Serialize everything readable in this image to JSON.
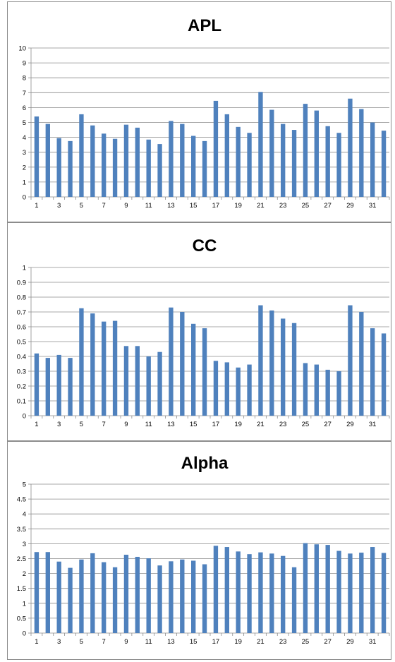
{
  "chart_data": [
    {
      "type": "bar",
      "title": "APL",
      "xlabel": "",
      "ylabel": "",
      "ylim": [
        0,
        10
      ],
      "ytick_step": 1,
      "yticks": [
        "0",
        "1",
        "2",
        "3",
        "4",
        "5",
        "6",
        "7",
        "8",
        "9",
        "10"
      ],
      "categories": [
        1,
        2,
        3,
        4,
        5,
        6,
        7,
        8,
        9,
        10,
        11,
        12,
        13,
        14,
        15,
        16,
        17,
        18,
        19,
        20,
        21,
        22,
        23,
        24,
        25,
        26,
        27,
        28,
        29,
        30,
        31,
        32
      ],
      "xtick_labels": [
        "1",
        "3",
        "5",
        "7",
        "9",
        "11",
        "13",
        "15",
        "17",
        "19",
        "21",
        "23",
        "25",
        "27",
        "29",
        "31"
      ],
      "values": [
        5.4,
        4.9,
        3.95,
        3.75,
        5.55,
        4.8,
        4.25,
        3.9,
        4.85,
        4.65,
        3.85,
        3.55,
        5.1,
        4.9,
        4.1,
        3.75,
        6.45,
        5.55,
        4.7,
        4.3,
        7.05,
        5.85,
        4.9,
        4.5,
        6.25,
        5.8,
        4.75,
        4.3,
        6.6,
        5.9,
        5.0,
        4.45
      ],
      "grid": true,
      "bar_color": "#4f81bd"
    },
    {
      "type": "bar",
      "title": "CC",
      "xlabel": "",
      "ylabel": "",
      "ylim": [
        0,
        1
      ],
      "ytick_step": 0.1,
      "yticks": [
        "0",
        "0.1",
        "0.2",
        "0.3",
        "0.4",
        "0.5",
        "0.6",
        "0.7",
        "0.8",
        "0.9",
        "1"
      ],
      "categories": [
        1,
        2,
        3,
        4,
        5,
        6,
        7,
        8,
        9,
        10,
        11,
        12,
        13,
        14,
        15,
        16,
        17,
        18,
        19,
        20,
        21,
        22,
        23,
        24,
        25,
        26,
        27,
        28,
        29,
        30,
        31,
        32
      ],
      "xtick_labels": [
        "1",
        "3",
        "5",
        "7",
        "9",
        "11",
        "13",
        "15",
        "17",
        "19",
        "21",
        "23",
        "25",
        "27",
        "29",
        "31"
      ],
      "values": [
        0.42,
        0.39,
        0.41,
        0.39,
        0.725,
        0.69,
        0.635,
        0.64,
        0.47,
        0.47,
        0.4,
        0.43,
        0.73,
        0.7,
        0.62,
        0.59,
        0.37,
        0.36,
        0.325,
        0.345,
        0.745,
        0.71,
        0.655,
        0.625,
        0.355,
        0.345,
        0.31,
        0.3,
        0.745,
        0.7,
        0.59,
        0.555
      ],
      "grid": true,
      "bar_color": "#4f81bd"
    },
    {
      "type": "bar",
      "title": "Alpha",
      "xlabel": "",
      "ylabel": "",
      "ylim": [
        0,
        5
      ],
      "ytick_step": 0.5,
      "yticks": [
        "0",
        "0.5",
        "1",
        "1.5",
        "2",
        "2.5",
        "3",
        "3.5",
        "4",
        "4.5",
        "5"
      ],
      "categories": [
        1,
        2,
        3,
        4,
        5,
        6,
        7,
        8,
        9,
        10,
        11,
        12,
        13,
        14,
        15,
        16,
        17,
        18,
        19,
        20,
        21,
        22,
        23,
        24,
        25,
        26,
        27,
        28,
        29,
        30,
        31,
        32
      ],
      "xtick_labels": [
        "1",
        "3",
        "5",
        "7",
        "9",
        "11",
        "13",
        "15",
        "17",
        "19",
        "21",
        "23",
        "25",
        "27",
        "29",
        "31"
      ],
      "values": [
        2.72,
        2.72,
        2.4,
        2.19,
        2.47,
        2.68,
        2.38,
        2.21,
        2.63,
        2.56,
        2.51,
        2.27,
        2.41,
        2.47,
        2.43,
        2.31,
        2.93,
        2.89,
        2.74,
        2.65,
        2.71,
        2.67,
        2.59,
        2.21,
        3.02,
        2.98,
        2.96,
        2.76,
        2.67,
        2.7,
        2.89,
        2.69
      ],
      "grid": true,
      "bar_color": "#4f81bd"
    }
  ]
}
